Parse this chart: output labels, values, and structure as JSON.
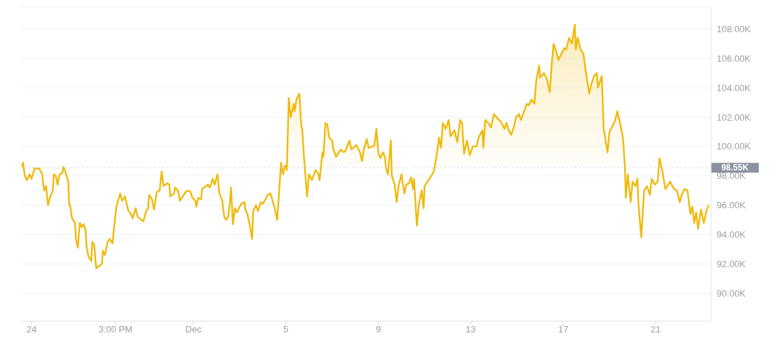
{
  "chart_data": {
    "type": "area",
    "grid": "y",
    "line_style": "solid",
    "marker": "none",
    "xlim": [
      "--11-23T13:00",
      "--12-23T09:30"
    ],
    "xticks": [
      {
        "value": "--11-24",
        "label": "24"
      },
      {
        "value": "--11-27T15:00",
        "label": "3:00 PM"
      },
      {
        "value": "--12-01",
        "label": "Dec"
      },
      {
        "value": "--12-05",
        "label": "5"
      },
      {
        "value": "--12-09",
        "label": "9"
      },
      {
        "value": "--12-13",
        "label": "13"
      },
      {
        "value": "--12-17",
        "label": "17"
      },
      {
        "value": "--12-21",
        "label": "21"
      }
    ],
    "ylim": [
      88.1,
      109.5
    ],
    "yticks": [
      {
        "value": 90,
        "label": "90.00K"
      },
      {
        "value": 92,
        "label": "92.00K"
      },
      {
        "value": 94,
        "label": "94.00K"
      },
      {
        "value": 96,
        "label": "96.00K"
      },
      {
        "value": 98,
        "label": "98.00K"
      },
      {
        "value": 100,
        "label": "100.00K"
      },
      {
        "value": 102,
        "label": "102.00K"
      },
      {
        "value": 104,
        "label": "104.00K"
      },
      {
        "value": 106,
        "label": "106.00K"
      },
      {
        "value": 108,
        "label": "108.00K"
      }
    ],
    "ref_lines": [
      {
        "axis": "y",
        "value": 98.55,
        "label": "98.55K",
        "line_style": "dotted",
        "color": "#c9cdd3"
      }
    ],
    "series": [
      {
        "color": "#f0b90b",
        "x": [
          "--11-23T14:00",
          "--11-23T15:00",
          "--11-23T17:00",
          "--11-23T19:00",
          "--11-23T22:00",
          "--11-24T00:00",
          "--11-24T03:00",
          "--11-24T08:00",
          "--11-24T11:00",
          "--11-24T13:00",
          "--11-24T15:00",
          "--11-24T17:00",
          "--11-24T19:00",
          "--11-24T22:00",
          "--11-24T23:00",
          "--11-25T01:00",
          "--11-25T03:00",
          "--11-25T05:00",
          "--11-25T08:00",
          "--11-25T09:00",
          "--11-25T11:00",
          "--11-25T14:00",
          "--11-25T15:00",
          "--11-25T16:00",
          "--11-25T18:00",
          "--11-25T21:00",
          "--11-25T22:00",
          "--11-26T00:00",
          "--11-26T02:00",
          "--11-26T04:00",
          "--11-26T06:00",
          "--11-26T08:00",
          "--11-26T09:00",
          "--11-26T11:00",
          "--11-26T14:00",
          "--11-26T15:00",
          "--11-26T17:00",
          "--11-26T19:00",
          "--11-26T21:00",
          "--11-27T01:00",
          "--11-27T02:00",
          "--11-27T04:00",
          "--11-27T07:00",
          "--11-27T09:00",
          "--11-27T12:00",
          "--11-27T13:00",
          "--11-27T16:00",
          "--11-27T20:00",
          "--11-27T22:00",
          "--11-28T01:00",
          "--11-28T04:00",
          "--11-28T07:00",
          "--11-28T09:00",
          "--11-28T12:00",
          "--11-28T14:00",
          "--11-28T18:00",
          "--11-28T20:00",
          "--11-28T23:00",
          "--11-29T01:00",
          "--11-29T02:00",
          "--11-29T05:00",
          "--11-29T07:00",
          "--11-29T10:00",
          "--11-29T13:00",
          "--11-29T15:00",
          "--11-29T17:00",
          "--11-29T21:00",
          "--11-29T23:00",
          "--11-30T00:00",
          "--11-30T04:00",
          "--11-30T05:00",
          "--11-30T08:00",
          "--11-30T10:00",
          "--11-30T12:00",
          "--11-30T16:00",
          "--11-30T18:00",
          "--11-30T21:00",
          "--11-30T23:00",
          "--12-01T02:00",
          "--12-01T03:00",
          "--12-01T05:00",
          "--12-01T08:00",
          "--12-01T09:00",
          "--12-01T11:00",
          "--12-01T15:00",
          "--12-01T17:00",
          "--12-01T20:00",
          "--12-01T22:00",
          "--12-02T01:00",
          "--12-02T03:00",
          "--12-02T06:00",
          "--12-02T08:00",
          "--12-02T10:00",
          "--12-02T12:00",
          "--12-02T14:00",
          "--12-02T15:00",
          "--12-02T17:00",
          "--12-02T19:00",
          "--12-02T21:00",
          "--12-03T00:00",
          "--12-03T02:00",
          "--12-03T05:00",
          "--12-03T06:00",
          "--12-03T08:00",
          "--12-03T10:00",
          "--12-03T13:00",
          "--12-03T14:00",
          "--12-03T17:00",
          "--12-03T19:00",
          "--12-03T22:00",
          "--12-04T00:00",
          "--12-04T02:00",
          "--12-04T05:00",
          "--12-04T08:00",
          "--12-04T12:00",
          "--12-04T15:00",
          "--12-04T19:00",
          "--12-04T21:00",
          "--12-04T23:00",
          "--12-05T01:00",
          "--12-05T03:00",
          "--12-05T05:00",
          "--12-05T08:00",
          "--12-05T09:00",
          "--12-05T11:00",
          "--12-05T14:00",
          "--12-05T16:00",
          "--12-05T17:00",
          "--12-05T19:00",
          "--12-05T22:00",
          "--12-06T00:00",
          "--12-06T03:00",
          "--12-06T07:00",
          "--12-06T10:00",
          "--12-06T11:00",
          "--12-06T14:00",
          "--12-06T15:00",
          "--12-06T17:00",
          "--12-06T19:00",
          "--12-06T21:00",
          "--12-07T00:00",
          "--12-07T01:00",
          "--12-07T04:00",
          "--12-07T07:00",
          "--12-07T09:00",
          "--12-07T12:00",
          "--12-07T14:00",
          "--12-07T18:00",
          "--12-07T20:00",
          "--12-08T01:00",
          "--12-08T05:00",
          "--12-08T07:00",
          "--12-08T09:00",
          "--12-08T12:00",
          "--12-08T14:00",
          "--12-08T18:00",
          "--12-08T20:00",
          "--12-08T22:00",
          "--12-09T00:00",
          "--12-09T02:00",
          "--12-09T05:00",
          "--12-09T07:00",
          "--12-09T08:00",
          "--12-09T10:00",
          "--12-09T13:00",
          "--12-09T14:00",
          "--12-09T17:00",
          "--12-09T19:00",
          "--12-09T21:00",
          "--12-10T00:00",
          "--12-10T03:00",
          "--12-10T05:00",
          "--12-10T08:00",
          "--12-10T10:00",
          "--12-10T12:00",
          "--12-10T13:00",
          "--12-10T15:00",
          "--12-10T16:00",
          "--12-10T18:00",
          "--12-10T21:00",
          "--12-10T23:00",
          "--12-11T00:00",
          "--12-11T03:00",
          "--12-11T05:00",
          "--12-11T08:00",
          "--12-11T10:00",
          "--12-11T13:00",
          "--12-11T15:00",
          "--12-11T17:00",
          "--12-11T19:00",
          "--12-11T22:00",
          "--12-12T01:00",
          "--12-12T03:00",
          "--12-12T07:00",
          "--12-12T10:00",
          "--12-12T13:00",
          "--12-12T15:00",
          "--12-12T17:00",
          "--12-12T20:00",
          "--12-12T23:00",
          "--12-13T02:00",
          "--12-13T06:00",
          "--12-13T08:00",
          "--12-13T12:00",
          "--12-13T13:00",
          "--12-13T15:00",
          "--12-13T18:00",
          "--12-13T21:00",
          "--12-14T00:00",
          "--12-14T04:00",
          "--12-14T07:00",
          "--12-14T11:00",
          "--12-14T13:00",
          "--12-14T16:00",
          "--12-14T18:00",
          "--12-14T21:00",
          "--12-14T23:00",
          "--12-15T02:00",
          "--12-15T04:00",
          "--12-15T08:00",
          "--12-15T10:00",
          "--12-15T12:00",
          "--12-15T15:00",
          "--12-15T18:00",
          "--12-15T20:00",
          "--12-15T23:00",
          "--12-16T00:00",
          "--12-16T04:00",
          "--12-16T07:00",
          "--12-16T10:00",
          "--12-16T12:00",
          "--12-16T14:00",
          "--12-16T17:00",
          "--12-16T19:00",
          "--12-16T22:00",
          "--12-17T01:00",
          "--12-17T03:00",
          "--12-17T06:00",
          "--12-17T09:00",
          "--12-17T12:00",
          "--12-17T13:00",
          "--12-17T15:00",
          "--12-17T18:00",
          "--12-17T21:00",
          "--12-17T23:00",
          "--12-18T02:00",
          "--12-18T03:00",
          "--12-18T05:00",
          "--12-18T08:00",
          "--12-18T11:00",
          "--12-18T12:00",
          "--12-18T16:00",
          "--12-18T18:00",
          "--12-18T20:00",
          "--12-18T22:00",
          "--12-19T00:00",
          "--12-19T04:00",
          "--12-19T06:00",
          "--12-19T08:00",
          "--12-19T11:00",
          "--12-19T14:00",
          "--12-19T16:00",
          "--12-19T17:00",
          "--12-19T19:00",
          "--12-19T22:00",
          "--12-20T00:00",
          "--12-20T03:00",
          "--12-20T05:00",
          "--12-20T06:00",
          "--12-20T09:00",
          "--12-20T12:00",
          "--12-20T15:00",
          "--12-20T18:00",
          "--12-20T20:00",
          "--12-20T23:00",
          "--12-21T02:00",
          "--12-21T04:00",
          "--12-21T07:00",
          "--12-21T10:00",
          "--12-21T13:00",
          "--12-21T15:00",
          "--12-21T19:00",
          "--12-21T22:00",
          "--12-22T01:00",
          "--12-22T03:00",
          "--12-22T06:00",
          "--12-22T09:00",
          "--12-22T12:00",
          "--12-22T14:00",
          "--12-22T16:00",
          "--12-22T18:00",
          "--12-22T20:00",
          "--12-22T23:00",
          "--12-23T02:00",
          "--12-23T05:00",
          "--12-23T07:00"
        ],
        "values": [
          98.6,
          98.9,
          98.0,
          97.7,
          98.1,
          97.8,
          98.5,
          98.5,
          98.1,
          97.0,
          97.3,
          96.0,
          96.5,
          97.0,
          98.1,
          98.0,
          97.4,
          98.1,
          98.2,
          98.6,
          98.3,
          97.6,
          96.0,
          96.0,
          95.1,
          94.8,
          93.7,
          93.1,
          94.8,
          94.5,
          94.7,
          94.3,
          93.2,
          92.5,
          92.2,
          93.5,
          93.3,
          91.7,
          91.8,
          92.0,
          92.9,
          92.6,
          93.5,
          93.7,
          93.4,
          94.1,
          95.9,
          96.8,
          96.3,
          96.6,
          95.7,
          95.4,
          95.1,
          95.8,
          95.2,
          95.0,
          94.9,
          95.6,
          95.8,
          96.7,
          96.4,
          95.7,
          96.9,
          97.0,
          98.3,
          97.3,
          97.5,
          97.4,
          96.6,
          96.8,
          97.2,
          97.0,
          96.3,
          96.5,
          96.9,
          97.0,
          96.9,
          96.5,
          96.3,
          95.9,
          96.5,
          96.4,
          97.1,
          97.2,
          97.4,
          97.2,
          97.8,
          97.4,
          98.1,
          96.8,
          96.3,
          95.2,
          95.0,
          95.2,
          96.3,
          97.2,
          94.7,
          95.8,
          95.5,
          95.9,
          96.1,
          96.2,
          95.7,
          95.4,
          94.8,
          93.7,
          95.6,
          96.0,
          95.6,
          96.2,
          96.1,
          96.3,
          96.7,
          96.8,
          95.9,
          95.0,
          98.9,
          98.1,
          98.7,
          98.4,
          103.3,
          102.0,
          102.9,
          102.4,
          103.2,
          103.6,
          101.4,
          101.2,
          99.1,
          96.6,
          98.1,
          97.7,
          98.4,
          98.1,
          97.7,
          99.6,
          99.3,
          101.6,
          101.5,
          100.6,
          100.4,
          99.9,
          99.3,
          99.6,
          99.8,
          99.6,
          99.7,
          100.4,
          99.8,
          100.1,
          99.6,
          99.0,
          99.8,
          100.5,
          99.9,
          100.0,
          100.1,
          101.2,
          99.6,
          99.2,
          99.6,
          99.2,
          98.5,
          98.1,
          100.4,
          98.0,
          97.4,
          96.2,
          97.3,
          98.1,
          96.8,
          97.4,
          97.5,
          97.9,
          97.1,
          97.8,
          95.7,
          94.6,
          96.0,
          97.0,
          95.8,
          97.3,
          97.6,
          97.8,
          98.1,
          98.4,
          99.6,
          100.6,
          99.9,
          101.6,
          101.2,
          101.8,
          100.7,
          101.1,
          100.3,
          101.8,
          101.6,
          99.5,
          100.4,
          99.4,
          100.0,
          100.0,
          100.6,
          101.1,
          99.9,
          101.8,
          101.6,
          101.3,
          102.2,
          101.9,
          101.7,
          101.2,
          101.6,
          101.0,
          100.8,
          101.4,
          102.0,
          102.2,
          101.8,
          102.5,
          102.9,
          102.8,
          103.2,
          102.9,
          104.5,
          105.5,
          104.7,
          105.0,
          104.6,
          103.7,
          105.6,
          107.0,
          106.4,
          105.9,
          106.3,
          106.7,
          106.6,
          107.4,
          107.0,
          108.3,
          106.6,
          107.4,
          106.6,
          106.3,
          105.3,
          104.0,
          103.6,
          104.2,
          104.8,
          105.0,
          104.0,
          104.8,
          101.2,
          100.4,
          99.6,
          101.0,
          101.5,
          101.8,
          102.4,
          101.6,
          100.6,
          98.7,
          96.5,
          98.1,
          96.2,
          97.6,
          97.3,
          97.8,
          96.2,
          93.8,
          97.0,
          97.3,
          96.7,
          97.8,
          97.4,
          97.6,
          99.2,
          98.3,
          97.1,
          97.4,
          97.6,
          97.1,
          97.0,
          96.2,
          96.7,
          97.1,
          97.0,
          95.4,
          95.9,
          94.8,
          95.5,
          94.4,
          95.7,
          94.8,
          95.7,
          96.0
        ]
      }
    ]
  }
}
